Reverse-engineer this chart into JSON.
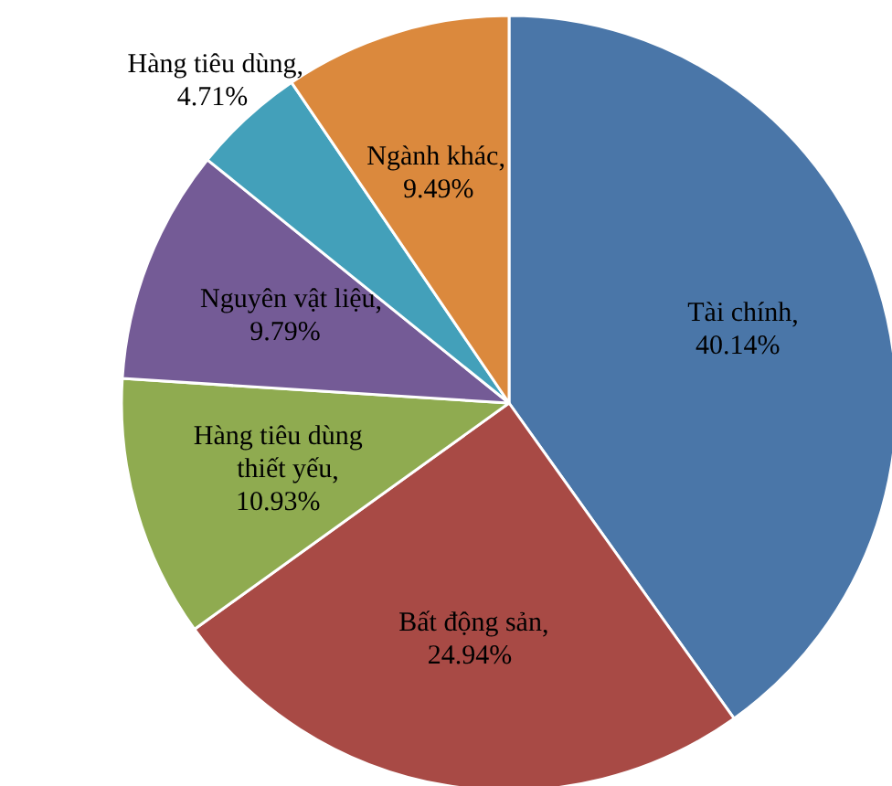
{
  "chart_data": {
    "type": "pie",
    "categories": [
      "Tài chính",
      "Bất động sản",
      "Hàng tiêu dùng thiết yếu",
      "Nguyên vật liệu",
      "Hàng tiêu dùng",
      "Ngành khác"
    ],
    "values": [
      40.14,
      24.94,
      10.93,
      9.79,
      4.71,
      9.49
    ],
    "value_labels": [
      ", 40.14%",
      ", 24.94%",
      ", 10.93%",
      ", 9.79%",
      ", 4.71%",
      ", 9.49%"
    ],
    "colors": [
      "#4a76a8",
      "#a84a45",
      "#8fab50",
      "#745b96",
      "#43a0ba",
      "#db893d"
    ]
  }
}
